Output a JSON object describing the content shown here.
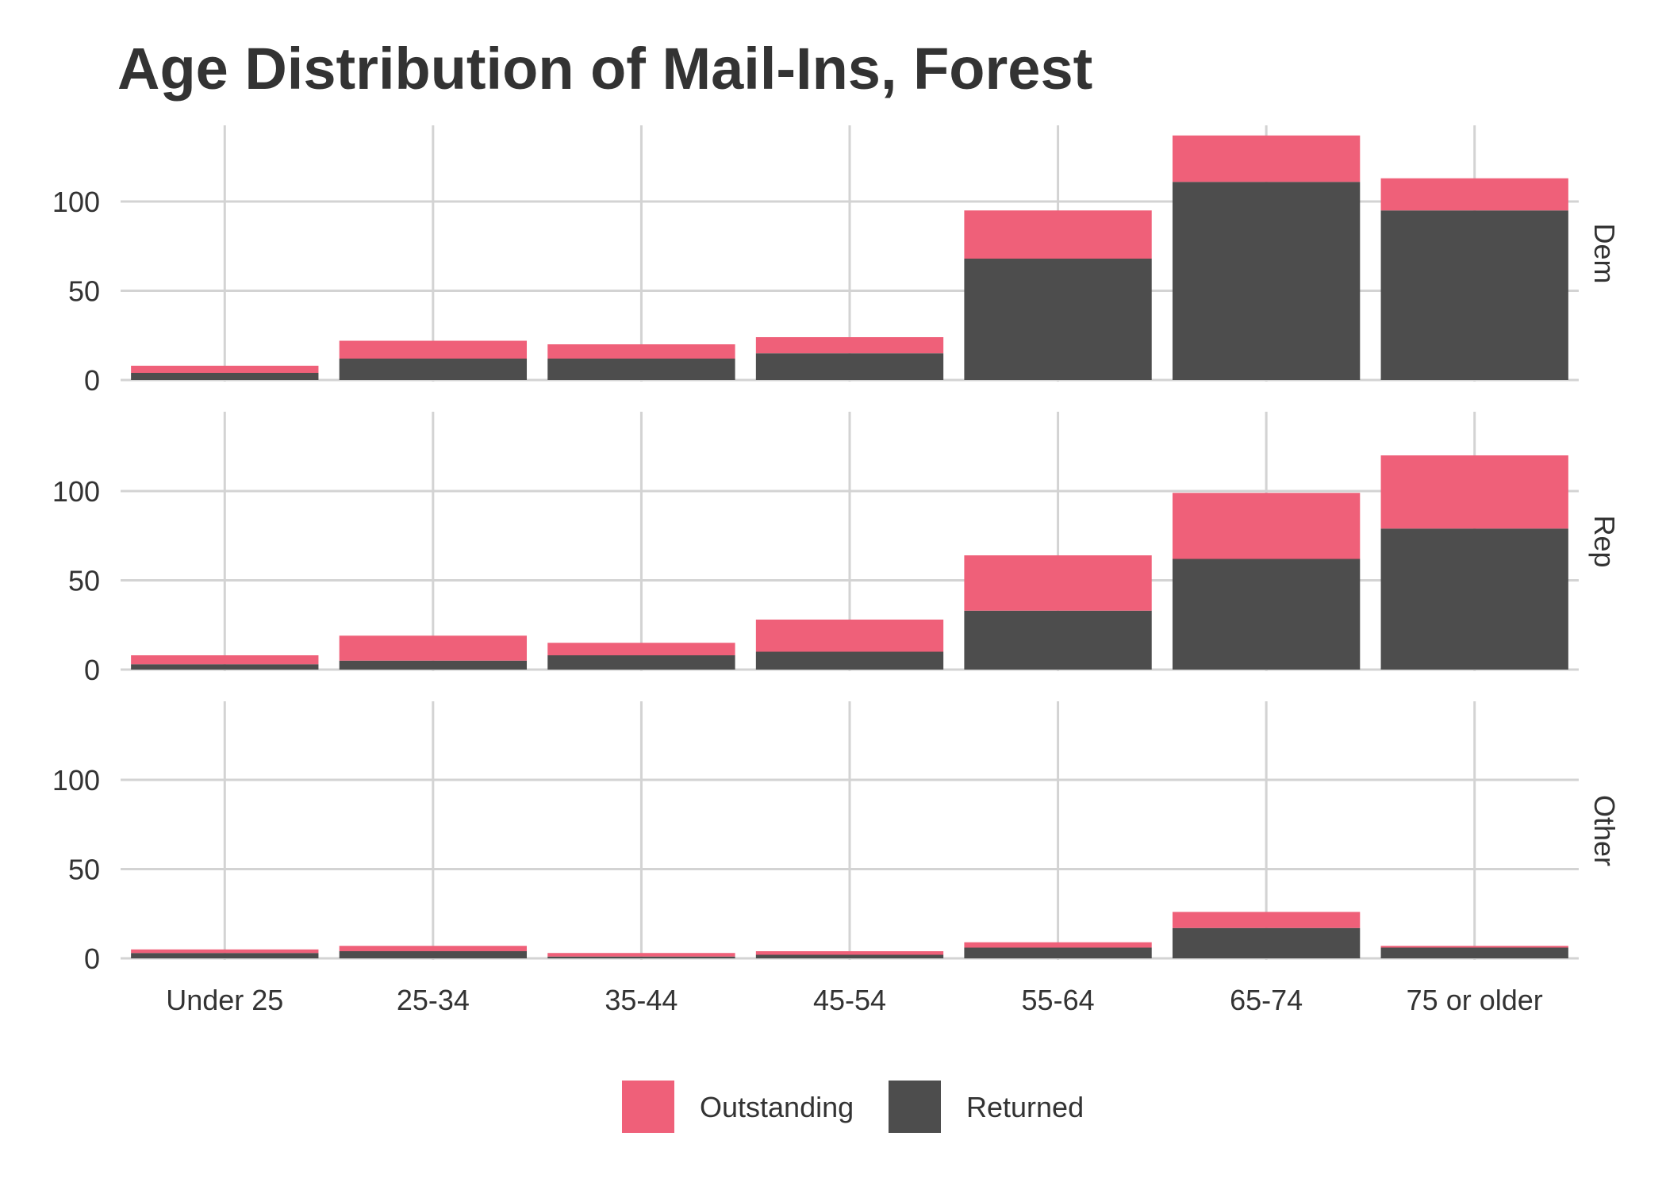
{
  "chart_data": {
    "type": "bar",
    "stacked": true,
    "faceted": true,
    "title": "Age Distribution of Mail-Ins, Forest",
    "xlabel": "",
    "ylabel": "",
    "categories": [
      "Under 25",
      "25-34",
      "35-44",
      "45-54",
      "55-64",
      "65-74",
      "75 or older"
    ],
    "ylim": [
      0,
      140
    ],
    "yticks": [
      0,
      50,
      100
    ],
    "grid": true,
    "legend_position": "bottom",
    "legend": [
      "Outstanding",
      "Returned"
    ],
    "colors": {
      "Outstanding": "#ef6079",
      "Returned": "#4d4d4d"
    },
    "facets": [
      {
        "label": "Dem",
        "series": [
          {
            "name": "Returned",
            "values": [
              4,
              12,
              12,
              15,
              68,
              111,
              95
            ]
          },
          {
            "name": "Outstanding",
            "values": [
              4,
              10,
              8,
              9,
              27,
              26,
              18
            ]
          }
        ]
      },
      {
        "label": "Rep",
        "series": [
          {
            "name": "Returned",
            "values": [
              3,
              5,
              8,
              10,
              33,
              62,
              79
            ]
          },
          {
            "name": "Outstanding",
            "values": [
              5,
              14,
              7,
              18,
              31,
              37,
              41
            ]
          }
        ]
      },
      {
        "label": "Other",
        "series": [
          {
            "name": "Returned",
            "values": [
              3,
              4,
              1,
              2,
              6,
              17,
              6
            ]
          },
          {
            "name": "Outstanding",
            "values": [
              2,
              3,
              2,
              2,
              3,
              9,
              1
            ]
          }
        ]
      }
    ]
  }
}
